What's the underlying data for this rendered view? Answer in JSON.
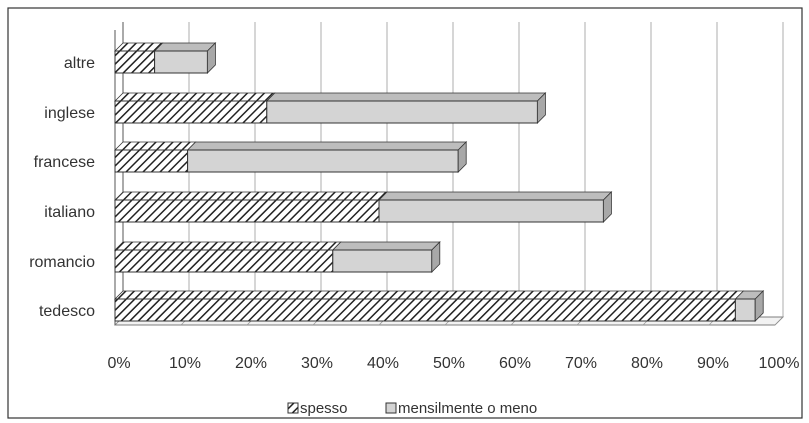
{
  "chart_data": {
    "type": "bar",
    "orientation": "horizontal",
    "stacked": true,
    "style_3d": true,
    "categories": [
      "altre",
      "inglese",
      "francese",
      "italiano",
      "romancio",
      "tedesco"
    ],
    "series": [
      {
        "name": "spesso",
        "values": [
          6,
          23,
          11,
          40,
          33,
          94
        ],
        "pattern": "hatched"
      },
      {
        "name": "mensilmente o meno",
        "values": [
          8,
          41,
          41,
          34,
          15,
          3
        ],
        "pattern": "solid"
      }
    ],
    "xlim": [
      0,
      100
    ],
    "x_ticks": [
      "0%",
      "10%",
      "20%",
      "30%",
      "40%",
      "50%",
      "60%",
      "70%",
      "80%",
      "90%",
      "100%"
    ],
    "grid": true,
    "legend_position": "bottom",
    "colors": {
      "hatch_stroke": "#222222",
      "hatch_bg": "#ffffff",
      "solid_fill": "#d4d4d4",
      "bar_outline": "#333333",
      "top_face": "#bdbdbd",
      "side_face": "#a8a8a8",
      "grid": "#9a9a9a",
      "axis": "#555555",
      "frame": "#333333"
    }
  }
}
